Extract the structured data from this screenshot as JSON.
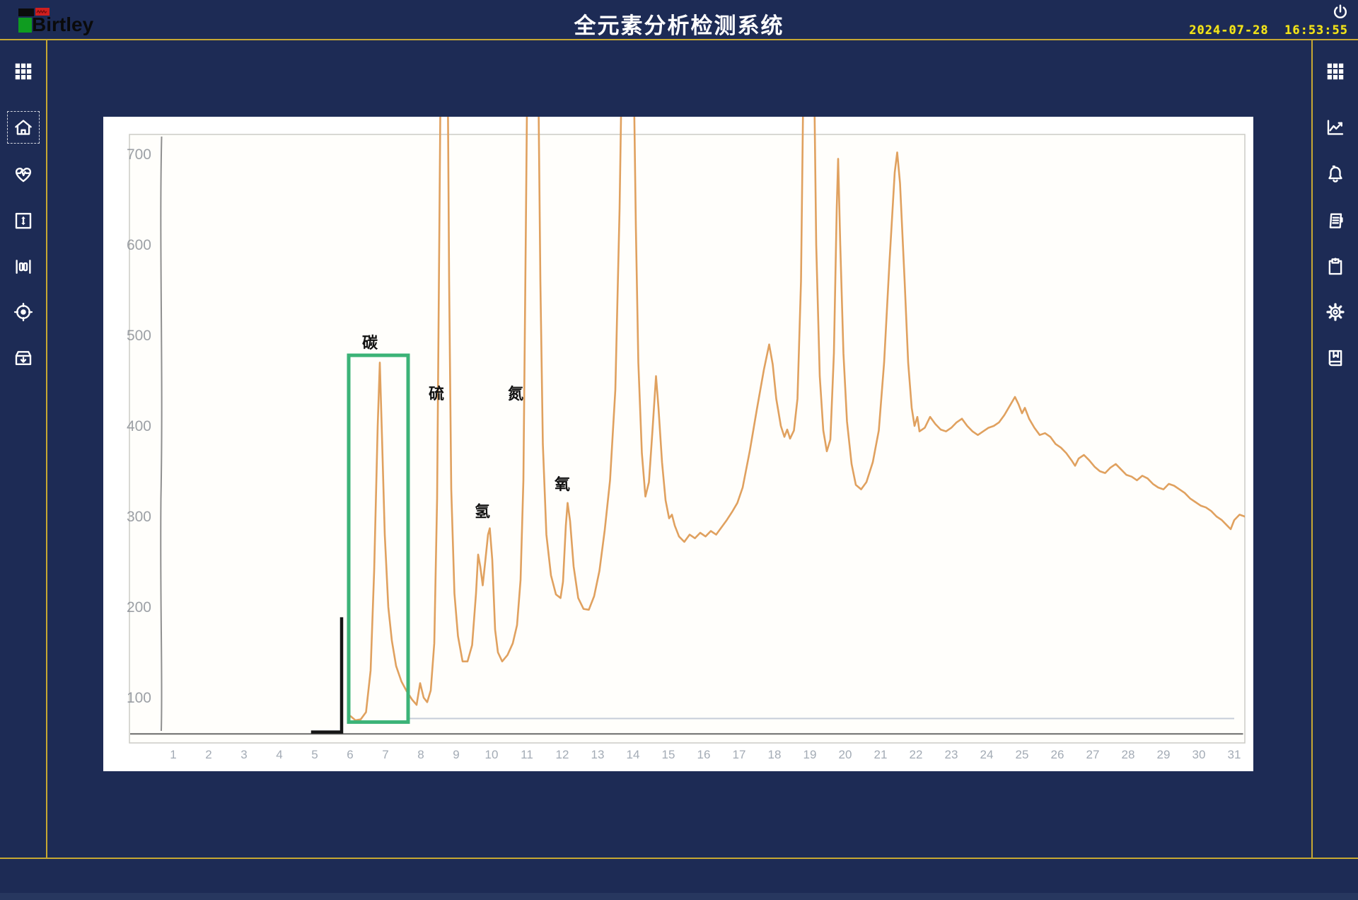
{
  "header": {
    "logo_text": "Birtley",
    "title": "全元素分析检测系统",
    "date": "2024-07-28",
    "time": "16:53:55"
  },
  "left_sidebar": {
    "items": [
      {
        "id": "apps",
        "icon": "grid-icon"
      },
      {
        "id": "home",
        "icon": "home-icon",
        "selected": true
      },
      {
        "id": "health-monitor",
        "icon": "heart-pulse-icon"
      },
      {
        "id": "vertical-range",
        "icon": "vertical-range-icon"
      },
      {
        "id": "columns",
        "icon": "slider-columns-icon"
      },
      {
        "id": "target",
        "icon": "target-icon"
      },
      {
        "id": "archive",
        "icon": "archive-box-icon"
      }
    ]
  },
  "right_sidebar": {
    "items": [
      {
        "id": "apps",
        "icon": "grid-icon"
      },
      {
        "id": "trend-curve",
        "icon": "line-chart-icon"
      },
      {
        "id": "alarms",
        "icon": "bell-icon"
      },
      {
        "id": "report",
        "icon": "document-icon"
      },
      {
        "id": "tasks",
        "icon": "clipboard-icon"
      },
      {
        "id": "settings",
        "icon": "gear-icon"
      },
      {
        "id": "records",
        "icon": "book-bookmark-icon"
      }
    ]
  },
  "chart_data": {
    "type": "line",
    "title": "",
    "xlabel": "",
    "ylabel": "",
    "xlim": [
      0,
      32
    ],
    "ylim": [
      0,
      750
    ],
    "grid": false,
    "legend": "none",
    "x_ticks": [
      1,
      2,
      3,
      4,
      5,
      6,
      7,
      8,
      9,
      10,
      11,
      12,
      13,
      14,
      15,
      16,
      17,
      18,
      19,
      20,
      21,
      22,
      23,
      24,
      25,
      26,
      27,
      28,
      29,
      30,
      31
    ],
    "y_ticks": [
      700,
      600,
      500,
      400,
      300,
      200,
      100
    ],
    "colors": {
      "trace": "#e0a15f",
      "red_baseline": "#c24b45",
      "gray_baseline": "#a9b2c4",
      "axis": "#8f8f8f",
      "dark_axis": "#474747",
      "highlight_box": "#3cb377",
      "bracket": "#151515",
      "tick_label": "#8b9097",
      "x_tick_label": "#a3abb5",
      "annotation": "#111111"
    },
    "peak_annotations": [
      {
        "label": "碳",
        "x": 6.56,
        "y": 492
      },
      {
        "label": "硫",
        "x": 8.44,
        "y": 436
      },
      {
        "label": "氢",
        "x": 9.74,
        "y": 306
      },
      {
        "label": "氮",
        "x": 10.68,
        "y": 436
      },
      {
        "label": "氧",
        "x": 12.0,
        "y": 336
      }
    ],
    "highlight_box": {
      "x1": 5.96,
      "x2": 7.64,
      "y1": 73,
      "y2": 478
    },
    "bracket": {
      "x": 5.76,
      "y_top": 187,
      "y_bottom": 62,
      "x_foot": 4.94
    },
    "red_baseline": {
      "x1": -0.2,
      "x2": 5.5,
      "y": 77
    },
    "gray_baseline": {
      "x1": 7.66,
      "x2": 31.0,
      "y": 77
    },
    "dark_axis_line": {
      "x1": -0.22,
      "x2": 31.25,
      "y": 60
    },
    "series": [
      {
        "name": "element-trace",
        "points": [
          [
            6.0,
            80
          ],
          [
            6.15,
            75
          ],
          [
            6.3,
            76
          ],
          [
            6.45,
            84
          ],
          [
            6.58,
            130
          ],
          [
            6.68,
            240
          ],
          [
            6.78,
            400
          ],
          [
            6.84,
            470
          ],
          [
            6.9,
            390
          ],
          [
            6.98,
            280
          ],
          [
            7.08,
            200
          ],
          [
            7.18,
            163
          ],
          [
            7.3,
            135
          ],
          [
            7.45,
            118
          ],
          [
            7.6,
            107
          ],
          [
            7.75,
            98
          ],
          [
            7.88,
            92
          ],
          [
            7.98,
            116
          ],
          [
            8.08,
            100
          ],
          [
            8.18,
            95
          ],
          [
            8.28,
            108
          ],
          [
            8.38,
            160
          ],
          [
            8.46,
            320
          ],
          [
            8.52,
            600
          ],
          [
            8.56,
            790
          ],
          [
            8.76,
            790
          ],
          [
            8.8,
            560
          ],
          [
            8.86,
            330
          ],
          [
            8.95,
            215
          ],
          [
            9.05,
            168
          ],
          [
            9.18,
            140
          ],
          [
            9.32,
            140
          ],
          [
            9.45,
            158
          ],
          [
            9.56,
            215
          ],
          [
            9.62,
            258
          ],
          [
            9.68,
            245
          ],
          [
            9.75,
            224
          ],
          [
            9.82,
            250
          ],
          [
            9.9,
            280
          ],
          [
            9.95,
            287
          ],
          [
            10.02,
            252
          ],
          [
            10.1,
            175
          ],
          [
            10.18,
            150
          ],
          [
            10.3,
            140
          ],
          [
            10.45,
            147
          ],
          [
            10.6,
            160
          ],
          [
            10.72,
            180
          ],
          [
            10.82,
            230
          ],
          [
            10.9,
            340
          ],
          [
            10.97,
            620
          ],
          [
            11.01,
            790
          ],
          [
            11.32,
            790
          ],
          [
            11.38,
            560
          ],
          [
            11.45,
            380
          ],
          [
            11.55,
            280
          ],
          [
            11.68,
            235
          ],
          [
            11.82,
            214
          ],
          [
            11.95,
            210
          ],
          [
            12.02,
            228
          ],
          [
            12.1,
            290
          ],
          [
            12.15,
            315
          ],
          [
            12.22,
            295
          ],
          [
            12.32,
            245
          ],
          [
            12.45,
            210
          ],
          [
            12.6,
            198
          ],
          [
            12.75,
            197
          ],
          [
            12.9,
            212
          ],
          [
            13.05,
            240
          ],
          [
            13.2,
            285
          ],
          [
            13.35,
            340
          ],
          [
            13.5,
            440
          ],
          [
            13.62,
            640
          ],
          [
            13.68,
            790
          ],
          [
            14.02,
            790
          ],
          [
            14.08,
            620
          ],
          [
            14.15,
            470
          ],
          [
            14.25,
            370
          ],
          [
            14.35,
            322
          ],
          [
            14.45,
            338
          ],
          [
            14.55,
            395
          ],
          [
            14.65,
            455
          ],
          [
            14.72,
            420
          ],
          [
            14.82,
            360
          ],
          [
            14.92,
            318
          ],
          [
            15.02,
            298
          ],
          [
            15.1,
            302
          ],
          [
            15.18,
            290
          ],
          [
            15.3,
            278
          ],
          [
            15.45,
            272
          ],
          [
            15.6,
            280
          ],
          [
            15.75,
            276
          ],
          [
            15.9,
            282
          ],
          [
            16.05,
            278
          ],
          [
            16.2,
            284
          ],
          [
            16.35,
            280
          ],
          [
            16.5,
            288
          ],
          [
            16.65,
            296
          ],
          [
            16.8,
            305
          ],
          [
            16.95,
            315
          ],
          [
            17.1,
            332
          ],
          [
            17.3,
            372
          ],
          [
            17.5,
            418
          ],
          [
            17.7,
            462
          ],
          [
            17.85,
            490
          ],
          [
            17.95,
            468
          ],
          [
            18.05,
            430
          ],
          [
            18.18,
            400
          ],
          [
            18.28,
            388
          ],
          [
            18.36,
            396
          ],
          [
            18.44,
            386
          ],
          [
            18.55,
            395
          ],
          [
            18.65,
            430
          ],
          [
            18.75,
            560
          ],
          [
            18.82,
            790
          ],
          [
            19.12,
            790
          ],
          [
            19.18,
            600
          ],
          [
            19.28,
            455
          ],
          [
            19.38,
            395
          ],
          [
            19.48,
            372
          ],
          [
            19.58,
            385
          ],
          [
            19.68,
            480
          ],
          [
            19.76,
            640
          ],
          [
            19.8,
            695
          ],
          [
            19.86,
            600
          ],
          [
            19.95,
            480
          ],
          [
            20.05,
            405
          ],
          [
            20.18,
            358
          ],
          [
            20.3,
            335
          ],
          [
            20.45,
            330
          ],
          [
            20.6,
            338
          ],
          [
            20.78,
            360
          ],
          [
            20.95,
            395
          ],
          [
            21.1,
            470
          ],
          [
            21.25,
            580
          ],
          [
            21.4,
            680
          ],
          [
            21.47,
            702
          ],
          [
            21.55,
            668
          ],
          [
            21.68,
            560
          ],
          [
            21.78,
            470
          ],
          [
            21.88,
            420
          ],
          [
            21.96,
            400
          ],
          [
            22.04,
            410
          ],
          [
            22.1,
            394
          ],
          [
            22.25,
            398
          ],
          [
            22.4,
            410
          ],
          [
            22.55,
            402
          ],
          [
            22.7,
            396
          ],
          [
            22.85,
            394
          ],
          [
            23.0,
            398
          ],
          [
            23.15,
            404
          ],
          [
            23.3,
            408
          ],
          [
            23.45,
            400
          ],
          [
            23.6,
            394
          ],
          [
            23.75,
            390
          ],
          [
            23.9,
            394
          ],
          [
            24.05,
            398
          ],
          [
            24.2,
            400
          ],
          [
            24.35,
            404
          ],
          [
            24.5,
            412
          ],
          [
            24.65,
            422
          ],
          [
            24.8,
            432
          ],
          [
            24.9,
            424
          ],
          [
            25.0,
            414
          ],
          [
            25.08,
            420
          ],
          [
            25.2,
            408
          ],
          [
            25.35,
            398
          ],
          [
            25.5,
            390
          ],
          [
            25.65,
            392
          ],
          [
            25.8,
            388
          ],
          [
            25.95,
            380
          ],
          [
            26.1,
            376
          ],
          [
            26.25,
            370
          ],
          [
            26.4,
            362
          ],
          [
            26.5,
            356
          ],
          [
            26.6,
            364
          ],
          [
            26.75,
            368
          ],
          [
            26.9,
            362
          ],
          [
            27.05,
            355
          ],
          [
            27.2,
            350
          ],
          [
            27.35,
            348
          ],
          [
            27.5,
            354
          ],
          [
            27.65,
            358
          ],
          [
            27.8,
            352
          ],
          [
            27.95,
            346
          ],
          [
            28.1,
            344
          ],
          [
            28.25,
            340
          ],
          [
            28.4,
            345
          ],
          [
            28.55,
            342
          ],
          [
            28.7,
            336
          ],
          [
            28.85,
            332
          ],
          [
            29.0,
            330
          ],
          [
            29.15,
            336
          ],
          [
            29.3,
            334
          ],
          [
            29.45,
            330
          ],
          [
            29.6,
            326
          ],
          [
            29.75,
            320
          ],
          [
            29.9,
            316
          ],
          [
            30.05,
            312
          ],
          [
            30.2,
            310
          ],
          [
            30.35,
            306
          ],
          [
            30.5,
            300
          ],
          [
            30.65,
            296
          ],
          [
            30.8,
            290
          ],
          [
            30.9,
            286
          ],
          [
            31.0,
            296
          ],
          [
            31.15,
            302
          ],
          [
            31.3,
            300
          ],
          [
            31.45,
            294
          ],
          [
            31.55,
            290
          ]
        ]
      }
    ]
  }
}
